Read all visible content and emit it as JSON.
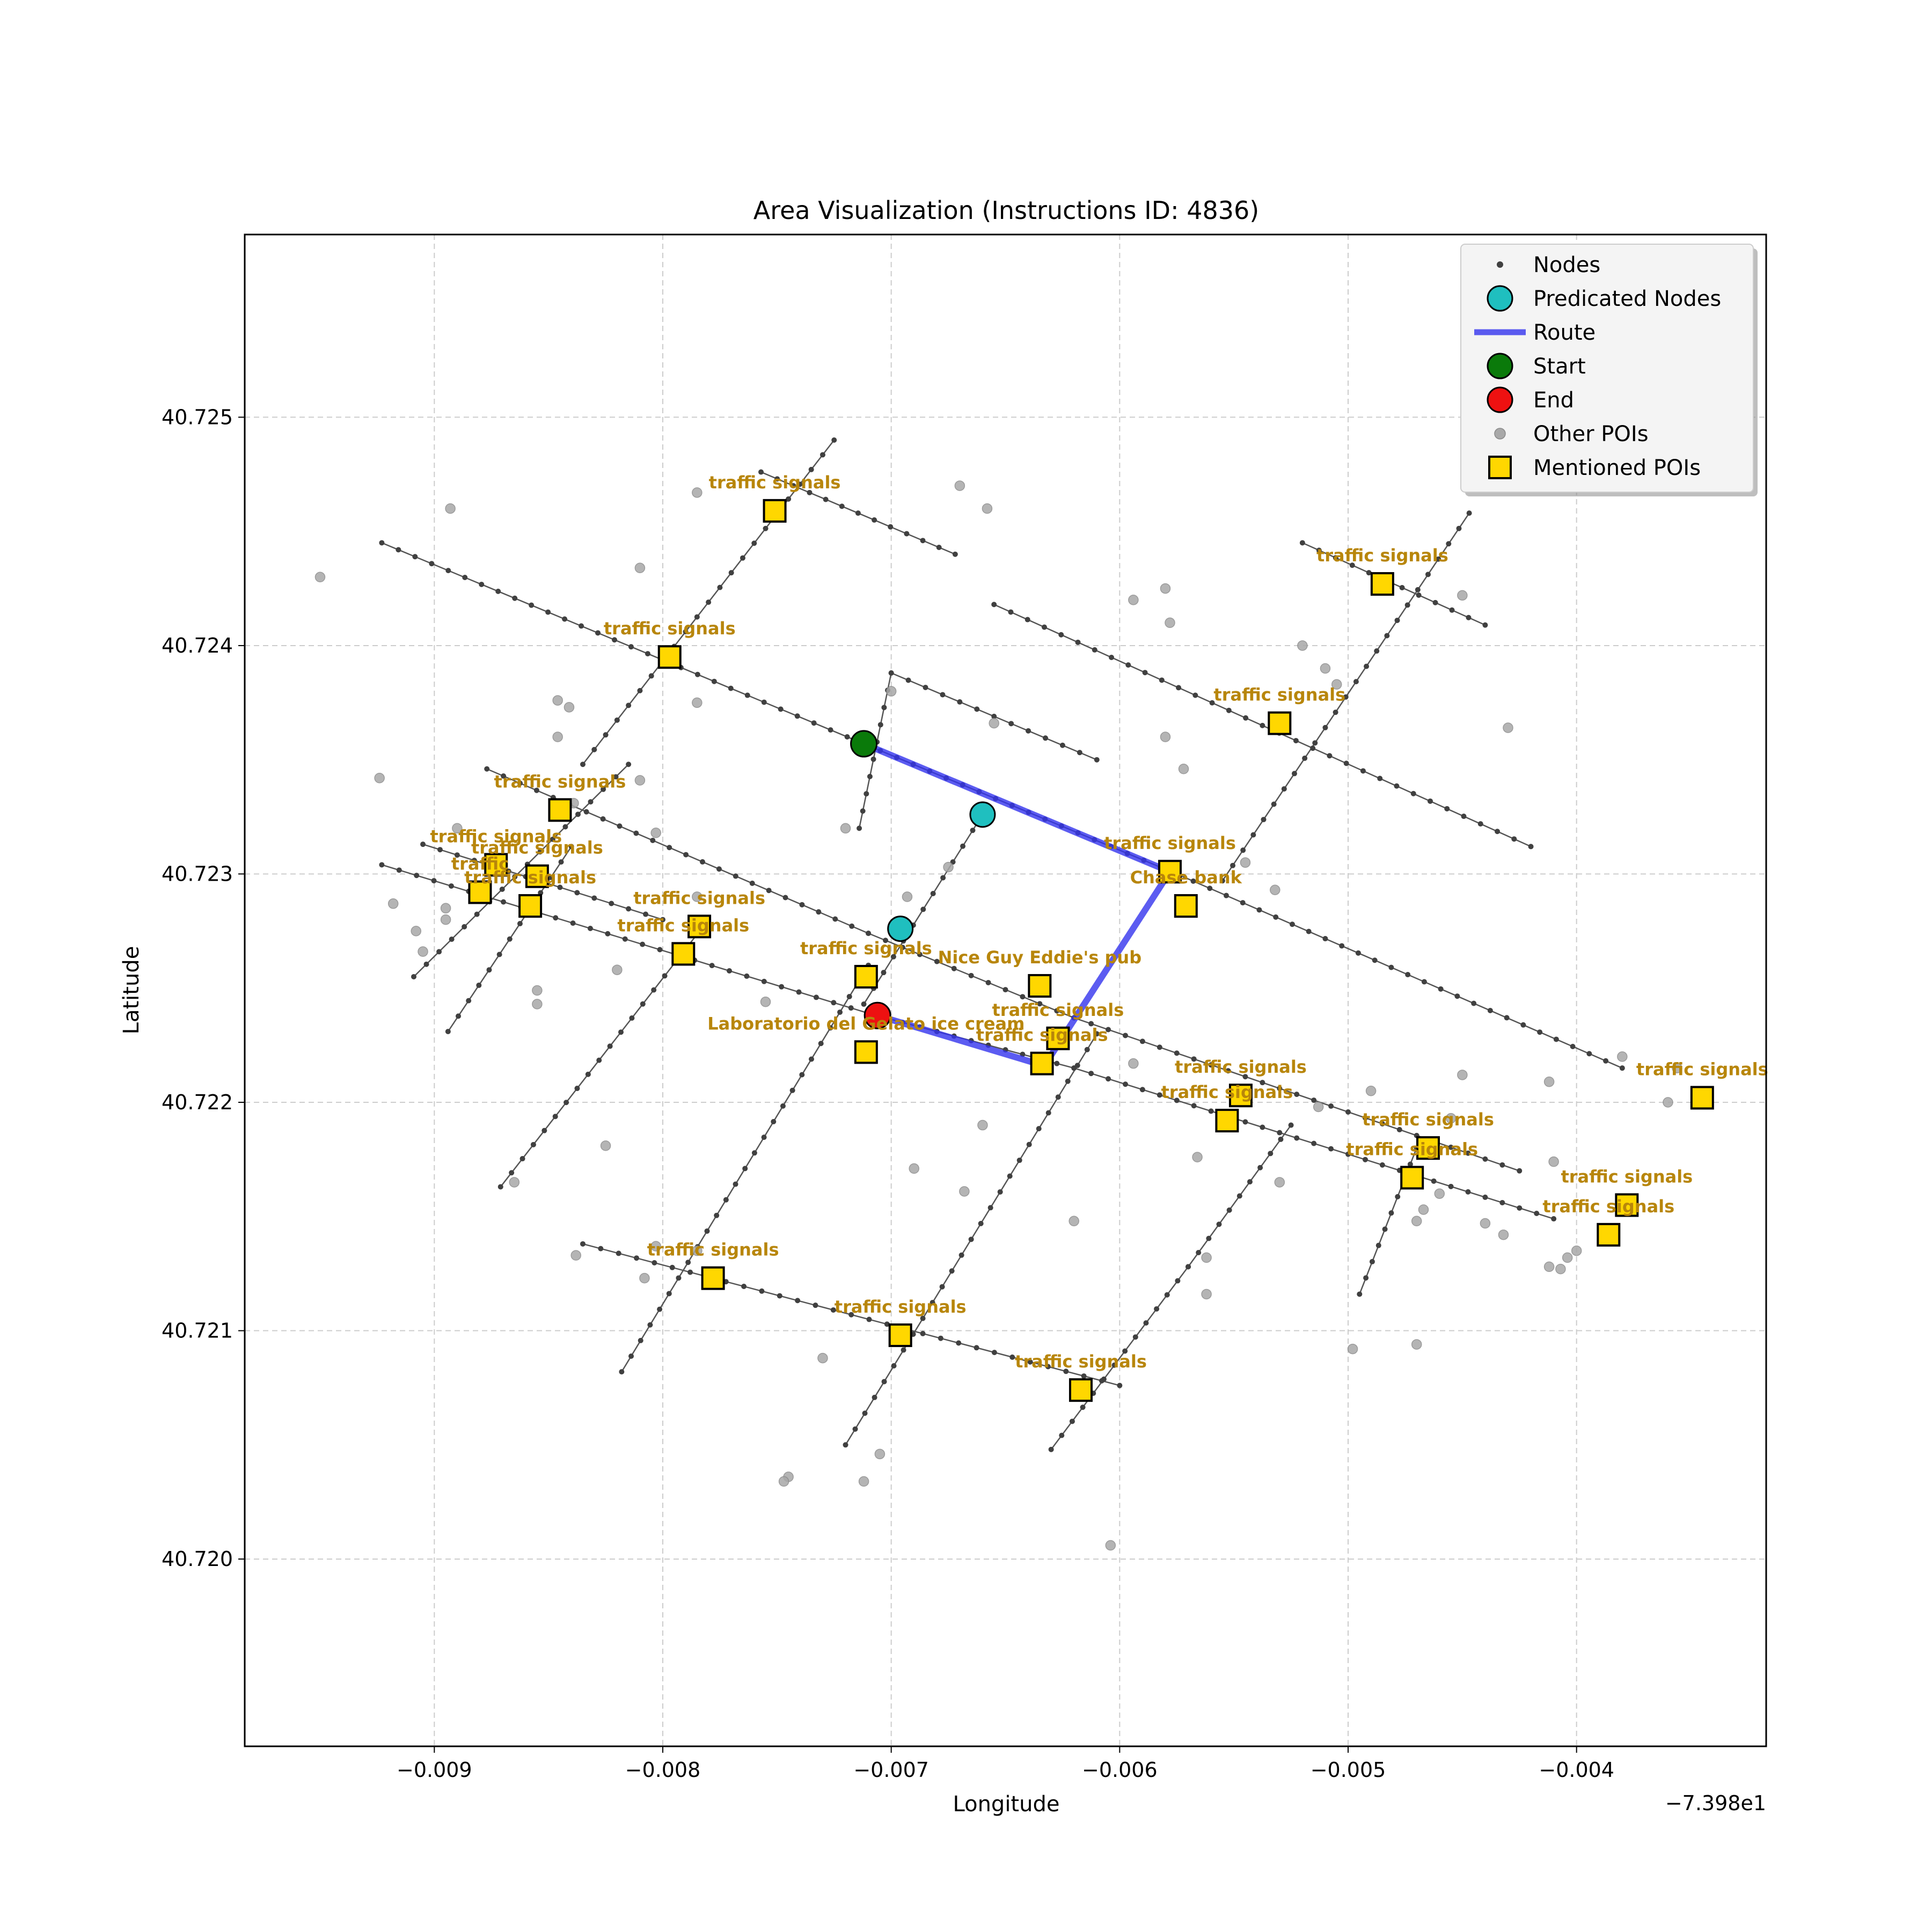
{
  "chart_data": {
    "type": "scatter",
    "title": "Area Visualization (Instructions ID: 4836)",
    "xlabel": "Longitude",
    "ylabel": "Latitude",
    "x_offset_label": "−7.398e1",
    "xlim": [
      -0.00983,
      -0.00317
    ],
    "ylim": [
      40.71918,
      40.7258
    ],
    "x_ticks": [
      -0.009,
      -0.008,
      -0.007,
      -0.006,
      -0.005,
      -0.004
    ],
    "x_tick_labels": [
      "−0.009",
      "−0.008",
      "−0.007",
      "−0.006",
      "−0.005",
      "−0.004"
    ],
    "y_ticks": [
      40.72,
      40.721,
      40.722,
      40.723,
      40.724,
      40.725
    ],
    "y_tick_labels": [
      "40.720",
      "40.721",
      "40.722",
      "40.723",
      "40.724",
      "40.725"
    ],
    "grid": true,
    "legend_position": "top-right",
    "colors": {
      "nodes": "#404040",
      "edges": "#555555",
      "route": "#3333ee",
      "predicated": "#1fbfbf",
      "start": "#0a7a0a",
      "end": "#ee1111",
      "other_poi": "#a8a8a8",
      "mentioned_poi": "#ffd700",
      "poi_label": "#b8860b"
    },
    "legend": [
      {
        "label": "Nodes",
        "marker": "small-dot"
      },
      {
        "label": "Predicated Nodes",
        "marker": "cyan-circle"
      },
      {
        "label": "Route",
        "marker": "blue-line"
      },
      {
        "label": "Start",
        "marker": "green-circle"
      },
      {
        "label": "End",
        "marker": "red-circle"
      },
      {
        "label": "Other POIs",
        "marker": "gray-dot"
      },
      {
        "label": "Mentioned POIs",
        "marker": "gold-square"
      }
    ],
    "streets": [
      [
        [
          -0.00923,
          40.72445
        ],
        [
          -0.00712,
          40.72357
        ]
      ],
      [
        [
          -0.00712,
          40.72357
        ],
        [
          -0.00575,
          40.723
        ]
      ],
      [
        [
          -0.00575,
          40.723
        ],
        [
          -0.0038,
          40.72215
        ]
      ],
      [
        [
          -0.00877,
          40.72346
        ],
        [
          -0.0071,
          40.72274
        ]
      ],
      [
        [
          -0.0071,
          40.72274
        ],
        [
          -0.0062,
          40.72237
        ]
      ],
      [
        [
          -0.0062,
          40.72237
        ],
        [
          -0.00425,
          40.7217
        ]
      ],
      [
        [
          -0.00923,
          40.72304
        ],
        [
          -0.0071,
          40.72239
        ]
      ],
      [
        [
          -0.0071,
          40.72239
        ],
        [
          -0.0062,
          40.72215
        ]
      ],
      [
        [
          -0.0062,
          40.72215
        ],
        [
          -0.0041,
          40.72149
        ]
      ],
      [
        [
          -0.00905,
          40.72313
        ],
        [
          -0.008,
          40.7228
        ]
      ],
      [
        [
          -0.00757,
          40.72476
        ],
        [
          -0.00672,
          40.7244
        ]
      ],
      [
        [
          -0.00714,
          40.7232
        ],
        [
          -0.007,
          40.72388
        ]
      ],
      [
        [
          -0.007,
          40.72388
        ],
        [
          -0.0061,
          40.7235
        ]
      ],
      [
        [
          -0.00655,
          40.72418
        ],
        [
          -0.0042,
          40.72312
        ]
      ],
      [
        [
          -0.0052,
          40.72445
        ],
        [
          -0.0044,
          40.72409
        ]
      ],
      [
        [
          -0.00835,
          40.72138
        ],
        [
          -0.006,
          40.72076
        ]
      ],
      [
        [
          -0.00909,
          40.72255
        ],
        [
          -0.00815,
          40.72348
        ]
      ],
      [
        [
          -0.00835,
          40.72348
        ],
        [
          -0.00725,
          40.7249
        ]
      ],
      [
        [
          -0.00894,
          40.72231
        ],
        [
          -0.0084,
          40.72312
        ]
      ],
      [
        [
          -0.00871,
          40.72163
        ],
        [
          -0.0078,
          40.7228
        ]
      ],
      [
        [
          -0.00818,
          40.72082
        ],
        [
          -0.0071,
          40.7226
        ]
      ],
      [
        [
          -0.0072,
          40.7205
        ],
        [
          -0.0061,
          40.7223
        ]
      ],
      [
        [
          -0.0063,
          40.72048
        ],
        [
          -0.0057,
          40.72128
        ]
      ],
      [
        [
          -0.0057,
          40.72128
        ],
        [
          -0.00525,
          40.7219
        ]
      ],
      [
        [
          -0.00555,
          40.72297
        ],
        [
          -0.00447,
          40.72458
        ]
      ],
      [
        [
          -0.00495,
          40.72116
        ],
        [
          -0.0047,
          40.7218
        ]
      ],
      [
        [
          -0.00712,
          40.72243
        ],
        [
          -0.0066,
          40.72326
        ]
      ]
    ],
    "route": [
      [
        -0.00712,
        40.72357
      ],
      [
        -0.00578,
        40.72301
      ],
      [
        -0.00633,
        40.72216
      ],
      [
        -0.00706,
        40.72238
      ]
    ],
    "predicated_nodes": [
      [
        -0.0066,
        40.72326
      ],
      [
        -0.00696,
        40.72276
      ]
    ],
    "start": [
      -0.00712,
      40.72357
    ],
    "end": [
      -0.00706,
      40.72238
    ],
    "other_pois": [
      [
        -0.0095,
        40.7243
      ],
      [
        -0.00893,
        40.7246
      ],
      [
        -0.00924,
        40.72342
      ],
      [
        -0.00918,
        40.72287
      ],
      [
        -0.00908,
        40.72275
      ],
      [
        -0.00905,
        40.72266
      ],
      [
        -0.00895,
        40.72285
      ],
      [
        -0.00895,
        40.7228
      ],
      [
        -0.0089,
        40.7232
      ],
      [
        -0.00846,
        40.72376
      ],
      [
        -0.00841,
        40.72373
      ],
      [
        -0.00846,
        40.7236
      ],
      [
        -0.00839,
        40.72331
      ],
      [
        -0.0081,
        40.72434
      ],
      [
        -0.0081,
        40.72341
      ],
      [
        -0.00803,
        40.72318
      ],
      [
        -0.00785,
        40.72375
      ],
      [
        -0.00785,
        40.72467
      ],
      [
        -0.00755,
        40.72244
      ],
      [
        -0.0075,
        40.7246
      ],
      [
        -0.0082,
        40.72258
      ],
      [
        -0.00825,
        40.72181
      ],
      [
        -0.00855,
        40.72243
      ],
      [
        -0.00855,
        40.72249
      ],
      [
        -0.00865,
        40.72165
      ],
      [
        -0.00838,
        40.72133
      ],
      [
        -0.00803,
        40.72137
      ],
      [
        -0.00785,
        40.72135
      ],
      [
        -0.00808,
        40.72123
      ],
      [
        -0.00785,
        40.7229
      ],
      [
        -0.0073,
        40.72088
      ],
      [
        -0.00745,
        40.72036
      ],
      [
        -0.00747,
        40.72034
      ],
      [
        -0.00712,
        40.72034
      ],
      [
        -0.00705,
        40.72046
      ],
      [
        -0.0069,
        40.72171
      ],
      [
        -0.00675,
        40.72303
      ],
      [
        -0.00658,
        40.7246
      ],
      [
        -0.00655,
        40.72366
      ],
      [
        -0.00668,
        40.72161
      ],
      [
        -0.0066,
        40.7219
      ],
      [
        -0.0062,
        40.72148
      ],
      [
        -0.00604,
        40.72006
      ],
      [
        -0.00594,
        40.72217
      ],
      [
        -0.00594,
        40.7242
      ],
      [
        -0.0058,
        40.72425
      ],
      [
        -0.00578,
        40.7241
      ],
      [
        -0.00572,
        40.72346
      ],
      [
        -0.00562,
        40.72132
      ],
      [
        -0.00562,
        40.72116
      ],
      [
        -0.00566,
        40.72176
      ],
      [
        -0.00532,
        40.72293
      ],
      [
        -0.0053,
        40.72165
      ],
      [
        -0.0052,
        40.724
      ],
      [
        -0.00505,
        40.72383
      ],
      [
        -0.00513,
        40.72198
      ],
      [
        -0.0047,
        40.72148
      ],
      [
        -0.00467,
        40.72153
      ],
      [
        -0.0046,
        40.7216
      ],
      [
        -0.00455,
        40.72193
      ],
      [
        -0.0045,
        40.72422
      ],
      [
        -0.0043,
        40.72364
      ],
      [
        -0.0044,
        40.72147
      ],
      [
        -0.00432,
        40.72142
      ],
      [
        -0.0041,
        40.72174
      ],
      [
        -0.00412,
        40.72128
      ],
      [
        -0.00407,
        40.72127
      ],
      [
        -0.00404,
        40.72132
      ],
      [
        -0.004,
        40.72135
      ],
      [
        -0.0047,
        40.72094
      ],
      [
        -0.00498,
        40.72092
      ],
      [
        -0.0049,
        40.72205
      ],
      [
        -0.0045,
        40.72212
      ],
      [
        -0.00412,
        40.72209
      ],
      [
        -0.0038,
        40.7222
      ],
      [
        -0.0036,
        40.722
      ],
      [
        -0.00356,
        40.72215
      ],
      [
        -0.00545,
        40.72305
      ],
      [
        -0.0051,
        40.7239
      ],
      [
        -0.0058,
        40.7236
      ],
      [
        -0.0067,
        40.7247
      ],
      [
        -0.0072,
        40.7232
      ],
      [
        -0.00693,
        40.7229
      ],
      [
        -0.007,
        40.7238
      ]
    ],
    "mentioned_pois": [
      {
        "label": "traffic signals",
        "x": -0.00751,
        "y": 40.72459
      },
      {
        "label": "traffic signals",
        "x": -0.00797,
        "y": 40.72395
      },
      {
        "label": "traffic signals",
        "x": -0.00845,
        "y": 40.72328
      },
      {
        "label": "traffic signals",
        "x": -0.00873,
        "y": 40.72304
      },
      {
        "label": "traffic signals",
        "x": -0.00855,
        "y": 40.72299
      },
      {
        "label": "traffic",
        "x": -0.0088,
        "y": 40.72292
      },
      {
        "label": "traffic signals",
        "x": -0.00858,
        "y": 40.72286
      },
      {
        "label": "traffic signals",
        "x": -0.00784,
        "y": 40.72277
      },
      {
        "label": "traffic signals",
        "x": -0.00791,
        "y": 40.72265
      },
      {
        "label": "traffic signals",
        "x": -0.00711,
        "y": 40.72255
      },
      {
        "label": "Laboratorio del Gelato ice cream",
        "x": -0.00711,
        "y": 40.72222
      },
      {
        "label": "Nice Guy Eddie's pub",
        "x": -0.00635,
        "y": 40.72251
      },
      {
        "label": "traffic signals",
        "x": -0.00627,
        "y": 40.72228
      },
      {
        "label": "traffic signals",
        "x": -0.00634,
        "y": 40.72217
      },
      {
        "label": "traffic signals",
        "x": -0.00578,
        "y": 40.72301
      },
      {
        "label": "Chase bank",
        "x": -0.00571,
        "y": 40.72286
      },
      {
        "label": "traffic signals",
        "x": -0.0053,
        "y": 40.72366
      },
      {
        "label": "traffic signals",
        "x": -0.00485,
        "y": 40.72427
      },
      {
        "label": "traffic signals",
        "x": -0.00547,
        "y": 40.72203
      },
      {
        "label": "traffic signals",
        "x": -0.00553,
        "y": 40.72192
      },
      {
        "label": "traffic signals",
        "x": -0.00465,
        "y": 40.7218
      },
      {
        "label": "traffic signals",
        "x": -0.00472,
        "y": 40.72167
      },
      {
        "label": "traffic signals",
        "x": -0.00378,
        "y": 40.72155
      },
      {
        "label": "traffic signals",
        "x": -0.00386,
        "y": 40.72142
      },
      {
        "label": "traffic signals",
        "x": -0.00345,
        "y": 40.72202
      },
      {
        "label": "traffic signals",
        "x": -0.00778,
        "y": 40.72123
      },
      {
        "label": "traffic signals",
        "x": -0.00696,
        "y": 40.72098
      },
      {
        "label": "traffic signals",
        "x": -0.00617,
        "y": 40.72074
      }
    ]
  }
}
